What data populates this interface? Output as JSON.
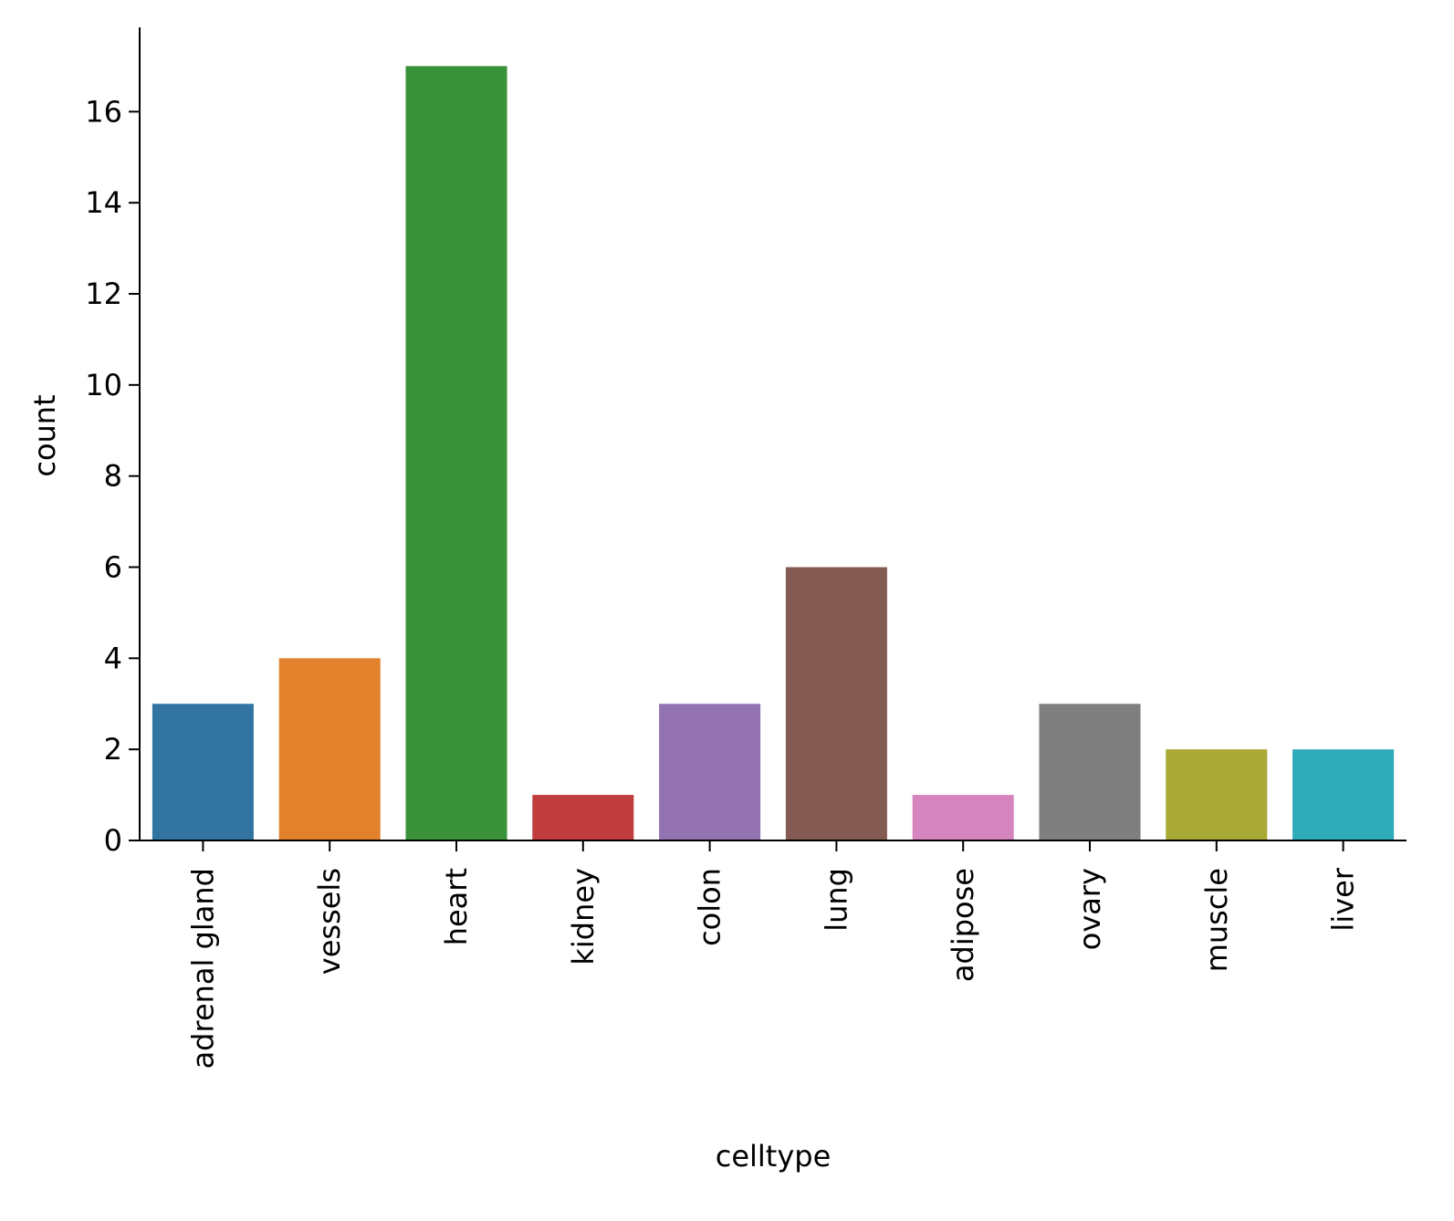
{
  "chart_data": {
    "type": "bar",
    "title": "",
    "xlabel": "celltype",
    "ylabel": "count",
    "categories": [
      "adrenal gland",
      "vessels",
      "heart",
      "kidney",
      "colon",
      "lung",
      "adipose",
      "ovary",
      "muscle",
      "liver"
    ],
    "values": [
      3,
      4,
      17,
      1,
      3,
      6,
      1,
      3,
      2,
      2
    ],
    "colors": [
      "#3274a1",
      "#e1812c",
      "#3a923a",
      "#c03d3e",
      "#9372b2",
      "#845b53",
      "#d684bd",
      "#7f7f7f",
      "#a9aa35",
      "#2eaab8"
    ],
    "yticks": [
      0,
      2,
      4,
      6,
      8,
      10,
      12,
      14,
      16
    ],
    "ylim": [
      0,
      17.85
    ],
    "grid": false,
    "legend": "none"
  }
}
